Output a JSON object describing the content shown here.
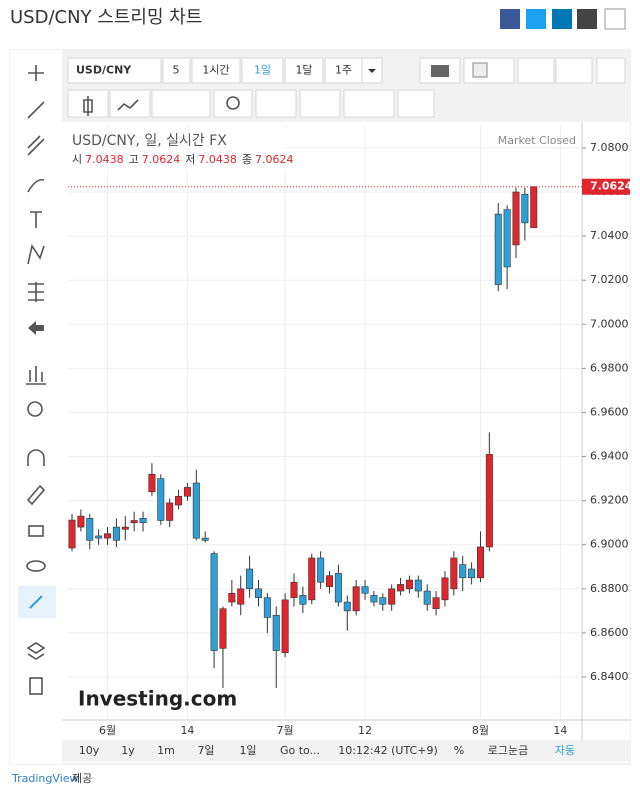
{
  "page": {
    "title": "USD/CNY 스트리밍 차트",
    "footer_link": "TradingView",
    "footer_text": "제공"
  },
  "toolbar": {
    "symbol": "USD/CNY",
    "interval_input": "5",
    "intervals": [
      "1시간",
      "1일",
      "1달",
      "1주"
    ]
  },
  "bottom_bar": {
    "ranges": [
      "10y",
      "1y",
      "1m",
      "7일",
      "1일"
    ],
    "goto": "Go to...",
    "time": "10:12:42 (UTC+9)",
    "percent": "%",
    "log": "로그눈금",
    "auto": "자동"
  },
  "chart_data": {
    "type": "candlestick",
    "title": "USD/CNY, 일, 실시간 FX",
    "status": "Market Closed",
    "ohlc_labels": [
      "시",
      "고",
      "저",
      "종"
    ],
    "watermark": "Investing.com",
    "up_color": "#e0262d",
    "down_color": "#2f9fd8",
    "categories": [
      null,
      null,
      null,
      null,
      "6월",
      null,
      null,
      null,
      null,
      null,
      null,
      null,
      null,
      "14",
      null,
      null,
      null,
      null,
      null,
      null,
      null,
      null,
      null,
      null,
      "7월",
      null,
      null,
      null,
      null,
      null,
      null,
      null,
      null,
      "12",
      null,
      null,
      null,
      null,
      null,
      null,
      null,
      null,
      null,
      null,
      null,
      null,
      "8월",
      null,
      null,
      null,
      null,
      null,
      null,
      null,
      null,
      "14",
      null
    ],
    "open": [
      6.8985,
      6.908,
      6.912,
      6.904,
      6.903,
      6.908,
      6.907,
      6.91,
      6.912,
      6.924,
      6.93,
      6.911,
      6.918,
      6.922,
      6.928,
      6.903,
      6.896,
      6.853,
      6.874,
      6.873,
      6.889,
      6.88,
      6.876,
      6.868,
      6.851,
      6.876,
      6.877,
      6.875,
      6.894,
      6.881,
      6.887,
      6.874,
      6.87,
      6.881,
      6.877,
      6.876,
      6.873,
      6.879,
      6.88,
      6.884,
      6.879,
      6.871,
      6.875,
      6.88,
      6.891,
      6.889,
      6.885,
      6.899,
      7.05,
      7.052,
      7.036,
      7.059,
      7.0438,
      null,
      null,
      null,
      null
    ],
    "high": [
      6.914,
      6.916,
      6.914,
      6.907,
      6.908,
      6.912,
      6.913,
      6.915,
      6.915,
      6.937,
      6.932,
      6.921,
      6.925,
      6.928,
      6.934,
      6.906,
      6.897,
      6.872,
      6.884,
      6.886,
      6.895,
      6.884,
      6.878,
      6.872,
      6.878,
      6.887,
      6.881,
      6.896,
      6.897,
      6.888,
      6.891,
      6.877,
      6.884,
      6.884,
      6.879,
      6.878,
      6.882,
      6.885,
      6.886,
      6.886,
      6.882,
      6.879,
      6.888,
      6.897,
      6.895,
      6.892,
      6.906,
      6.951,
      7.055,
      7.054,
      7.062,
      7.062,
      7.0624,
      null,
      null,
      null,
      null
    ],
    "low": [
      6.897,
      6.906,
      6.898,
      6.9,
      6.9,
      6.899,
      6.902,
      6.906,
      6.906,
      6.922,
      6.909,
      6.908,
      6.916,
      6.92,
      6.902,
      6.901,
      6.844,
      6.835,
      6.872,
      6.868,
      6.876,
      6.872,
      6.86,
      6.835,
      6.849,
      6.872,
      6.869,
      6.873,
      6.88,
      6.878,
      6.872,
      6.861,
      6.868,
      6.875,
      6.872,
      6.87,
      6.87,
      6.877,
      6.878,
      6.876,
      6.87,
      6.868,
      6.872,
      6.877,
      6.879,
      6.882,
      6.883,
      6.897,
      7.015,
      7.016,
      7.03,
      7.038,
      7.0438,
      null,
      null,
      null,
      null
    ],
    "close": [
      6.9112,
      6.913,
      6.902,
      6.903,
      6.905,
      6.902,
      6.908,
      6.911,
      6.91,
      6.932,
      6.911,
      6.919,
      6.922,
      6.926,
      6.903,
      6.902,
      6.852,
      6.871,
      6.878,
      6.88,
      6.88,
      6.876,
      6.867,
      6.852,
      6.875,
      6.883,
      6.873,
      6.894,
      6.883,
      6.886,
      6.874,
      6.87,
      6.881,
      6.878,
      6.874,
      6.873,
      6.88,
      6.882,
      6.884,
      6.879,
      6.873,
      6.876,
      6.885,
      6.894,
      6.885,
      6.885,
      6.899,
      6.941,
      7.018,
      7.026,
      7.06,
      7.046,
      7.0624,
      null,
      null,
      null,
      null
    ],
    "ylim": [
      6.8205,
      7.0904
    ],
    "yticks": [
      {
        "value": 7.08,
        "label": "7.0800"
      },
      {
        "value": 7.06,
        "label": "7.0600"
      },
      {
        "value": 7.04,
        "label": "7.0400"
      },
      {
        "value": 7.02,
        "label": "7.0200"
      },
      {
        "value": 7.0,
        "label": "7.0000"
      },
      {
        "value": 6.98,
        "label": "6.9800"
      },
      {
        "value": 6.96,
        "label": "6.9600"
      },
      {
        "value": 6.94,
        "label": "6.9400"
      },
      {
        "value": 6.92,
        "label": "6.9200"
      },
      {
        "value": 6.9,
        "label": "6.9000"
      },
      {
        "value": 6.88,
        "label": "6.8800"
      },
      {
        "value": 6.86,
        "label": "6.8600"
      },
      {
        "value": 6.84,
        "label": "6.8400"
      }
    ],
    "grid": true
  }
}
